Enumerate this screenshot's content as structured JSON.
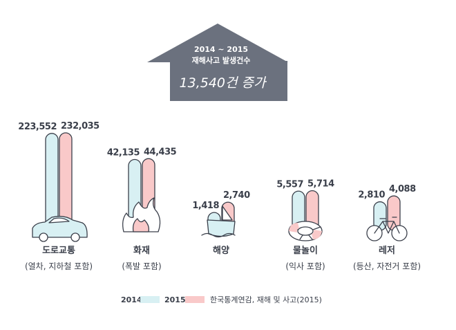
{
  "chart_data": {
    "type": "bar",
    "categories": [
      "도로교통",
      "화재",
      "해양",
      "물놀이",
      "레저"
    ],
    "category_notes": [
      "(열차, 지하철 포함)",
      "(폭발 포함)",
      "",
      "(익사 포함)",
      "(등산, 자전거 포함)"
    ],
    "category_icons": [
      "car-icon",
      "fire-icon",
      "ship-icon",
      "lifebuoy-icon",
      "bicycle-icon"
    ],
    "series": [
      {
        "name": "2014",
        "color": "#d8f0f3",
        "values": [
          223552,
          42135,
          1418,
          5557,
          2810
        ],
        "labels": [
          "223,552",
          "42,135",
          "1,418",
          "5,557",
          "2,810"
        ]
      },
      {
        "name": "2015",
        "color": "#f9c9c9",
        "values": [
          232035,
          44435,
          2740,
          5714,
          4088
        ],
        "labels": [
          "232,035",
          "44,435",
          "2,740",
          "5,714",
          "4,088"
        ]
      }
    ],
    "scale": "non-linear (illustrative)",
    "legend": {
      "position": "bottom-center",
      "source": "한국통계연감, 재해 및 사고(2015)"
    }
  },
  "callout": {
    "line1": "2014 ~ 2015",
    "line2": "재해사고 발생건수",
    "headline": "13,540건 증가",
    "color": "#6b717e"
  }
}
